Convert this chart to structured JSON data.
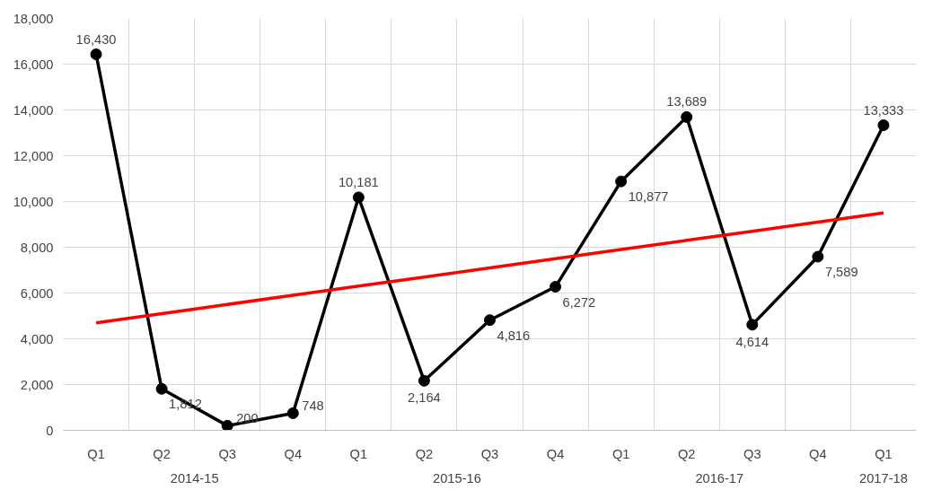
{
  "chart_data": {
    "type": "line",
    "categories": [
      "Q1",
      "Q2",
      "Q3",
      "Q4",
      "Q1",
      "Q2",
      "Q3",
      "Q4",
      "Q1",
      "Q2",
      "Q3",
      "Q4",
      "Q1"
    ],
    "series": [
      {
        "color": "#000000",
        "values": [
          16430,
          1812,
          200,
          748,
          10181,
          2164,
          4816,
          6272,
          10877,
          13689,
          4614,
          7589,
          13333
        ]
      },
      {
        "color": "#ff0000",
        "marker": "none",
        "values": [
          4700,
          5100,
          5500,
          5900,
          6300,
          6700,
          7100,
          7500,
          7900,
          8300,
          8700,
          9100,
          9500
        ]
      }
    ],
    "annotations": [
      "2014-15",
      "2015-16",
      "2016-17",
      "2017-18"
    ],
    "ylim": [
      0,
      18000
    ],
    "yticks": [
      {
        "value": 0,
        "label": "0"
      },
      {
        "value": 2000,
        "label": "2,000"
      },
      {
        "value": 4000,
        "label": "4,000"
      },
      {
        "value": 6000,
        "label": "6,000"
      },
      {
        "value": 8000,
        "label": "8,000"
      },
      {
        "value": 10000,
        "label": "10,000"
      },
      {
        "value": 12000,
        "label": "12,000"
      },
      {
        "value": 14000,
        "label": "14,000"
      },
      {
        "value": 16000,
        "label": "16,000"
      },
      {
        "value": 18000,
        "label": "18,000"
      }
    ],
    "grid": true,
    "marker": "circle",
    "line_style": "solid",
    "value_labels": [
      "16,430",
      "1,812",
      "200",
      "748",
      "10,181",
      "2,164",
      "4,816",
      "6,272",
      "10,877",
      "13,689",
      "4,614",
      "7,589",
      "13,333"
    ]
  }
}
